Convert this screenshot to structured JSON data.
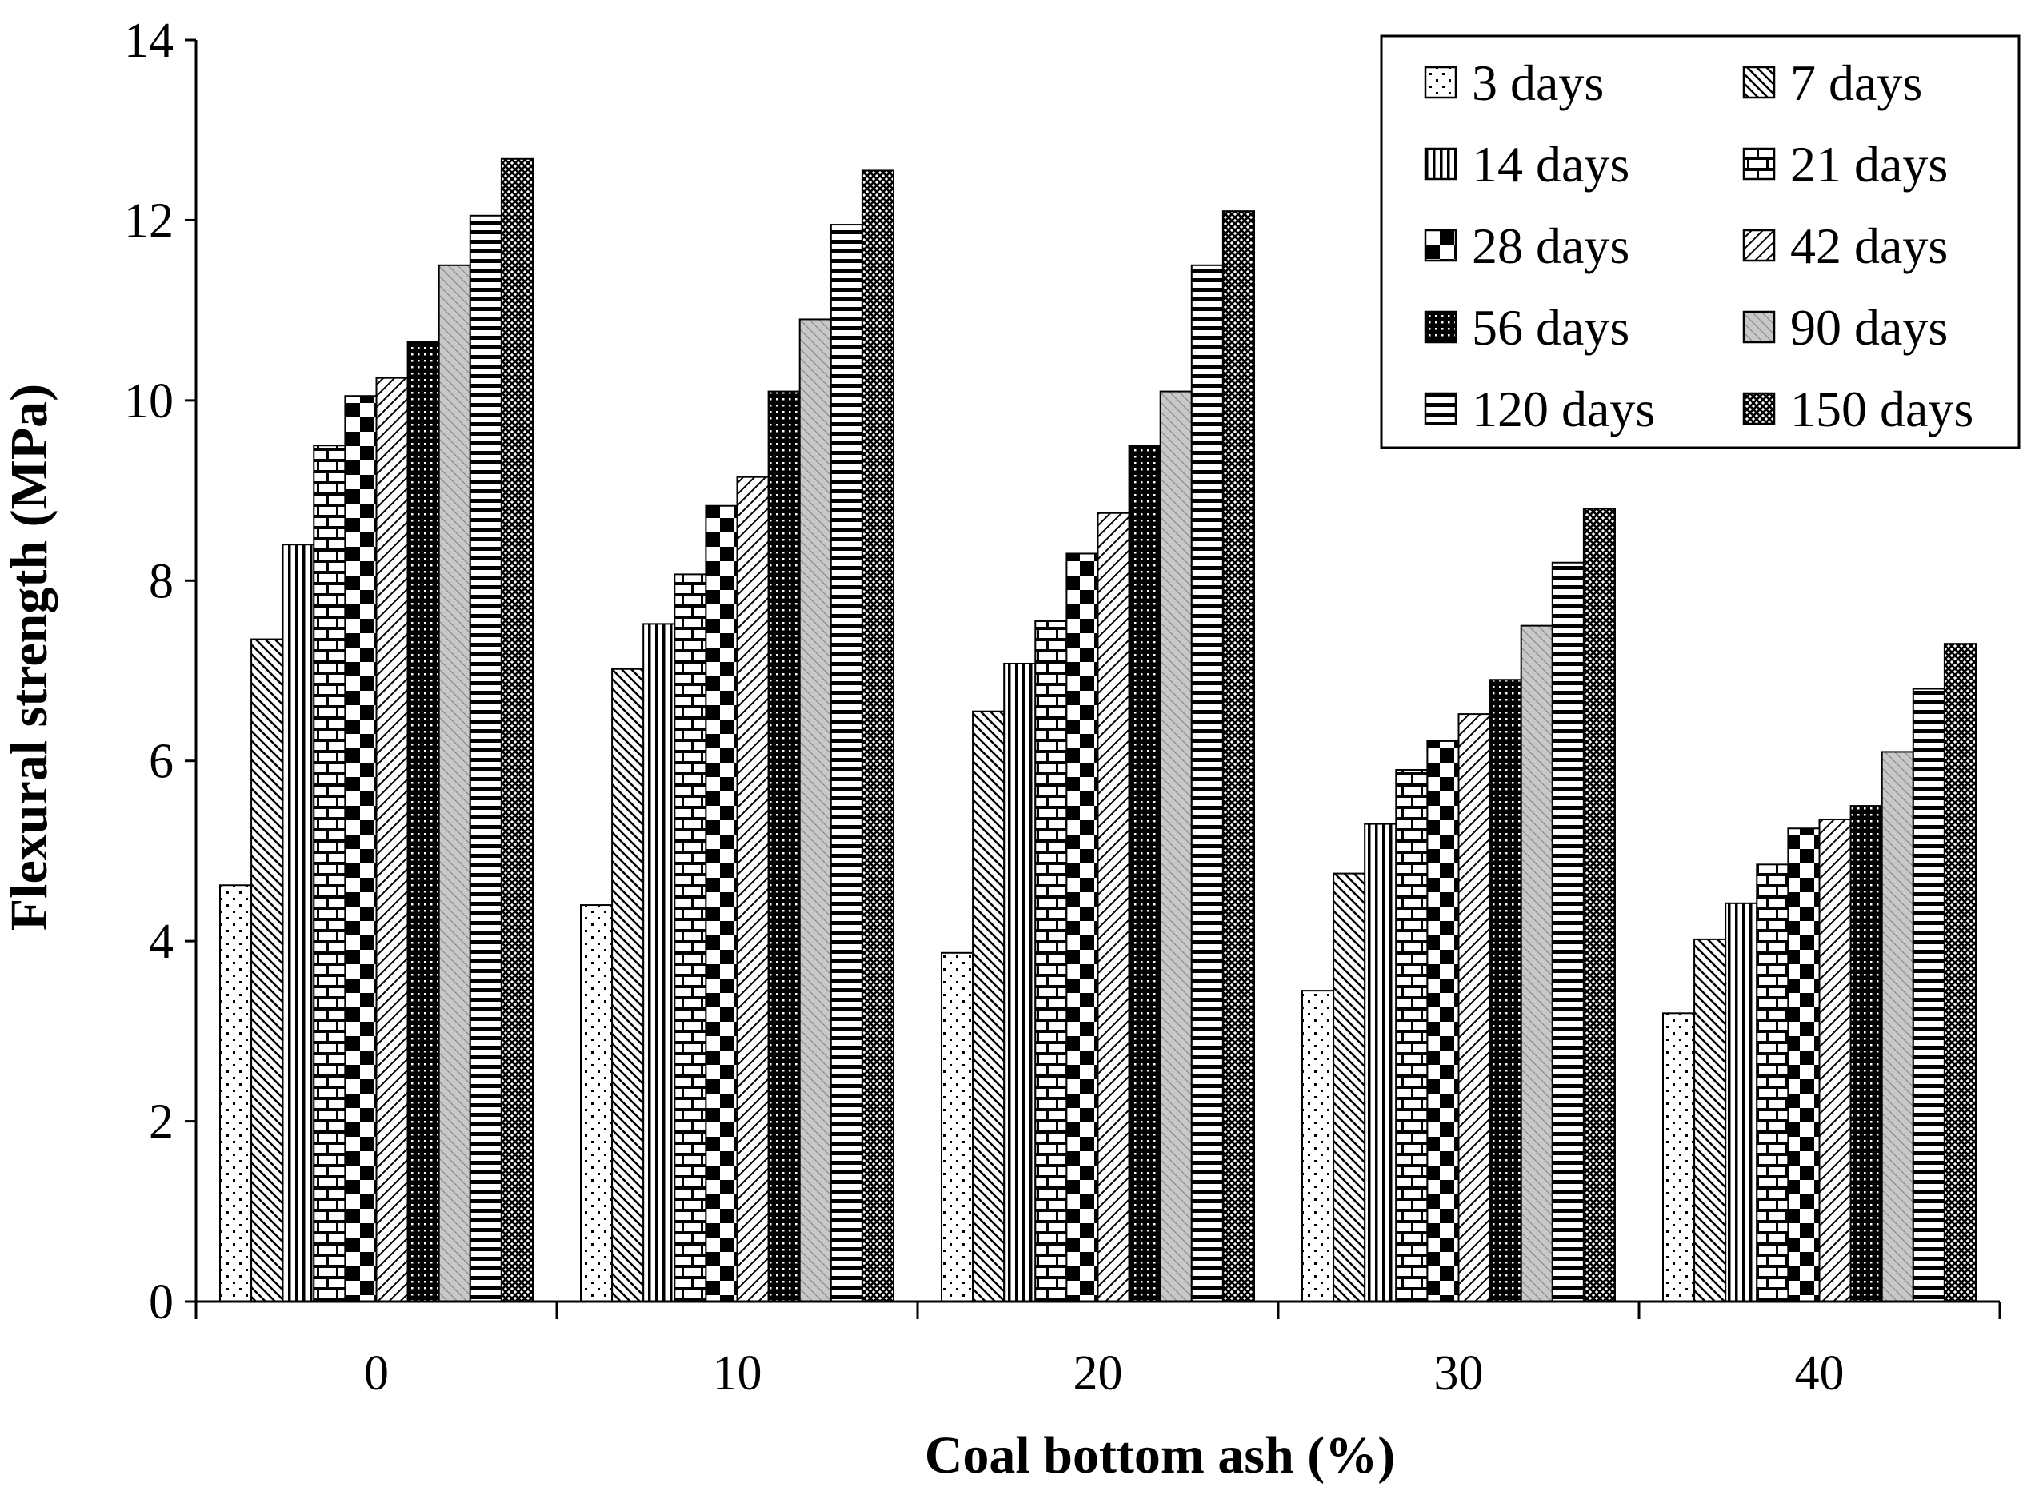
{
  "chart_data": {
    "type": "bar",
    "title": "",
    "xlabel": "Coal bottom ash (%)",
    "ylabel": "Flexural strength (MPa)",
    "ylim": [
      0,
      14
    ],
    "yticks": [
      "0",
      "2",
      "4",
      "6",
      "8",
      "10",
      "12",
      "14"
    ],
    "categories": [
      "0",
      "10",
      "20",
      "30",
      "40"
    ],
    "grid": false,
    "legend_position": "top-right",
    "series": [
      {
        "name": "3 days",
        "pattern": "dots",
        "values": [
          4.62,
          4.4,
          3.87,
          3.45,
          3.2
        ]
      },
      {
        "name": "7 days",
        "pattern": "diag-down",
        "values": [
          7.35,
          7.02,
          6.55,
          4.75,
          4.02
        ]
      },
      {
        "name": "14 days",
        "pattern": "vertical",
        "values": [
          8.4,
          7.52,
          7.08,
          5.3,
          4.42
        ]
      },
      {
        "name": "21 days",
        "pattern": "brick",
        "values": [
          9.5,
          8.07,
          7.55,
          5.9,
          4.85
        ]
      },
      {
        "name": "28 days",
        "pattern": "checker",
        "values": [
          10.05,
          8.83,
          8.3,
          6.22,
          5.25
        ]
      },
      {
        "name": "42 days",
        "pattern": "diag-up",
        "values": [
          10.25,
          9.15,
          8.75,
          6.52,
          5.35
        ]
      },
      {
        "name": "56 days",
        "pattern": "dark-dots",
        "values": [
          10.65,
          10.1,
          9.5,
          6.9,
          5.5
        ]
      },
      {
        "name": "90 days",
        "pattern": "gray-hatch",
        "values": [
          11.5,
          10.9,
          10.1,
          7.5,
          6.1
        ]
      },
      {
        "name": "120 days",
        "pattern": "horizontal",
        "values": [
          12.05,
          11.95,
          11.5,
          8.2,
          6.8
        ]
      },
      {
        "name": "150 days",
        "pattern": "crosshatch",
        "values": [
          12.68,
          12.55,
          12.1,
          8.8,
          7.3
        ]
      }
    ]
  },
  "colors": {
    "ink": "#000000",
    "background": "#ffffff",
    "gray_fill": "#c8c8c8"
  }
}
